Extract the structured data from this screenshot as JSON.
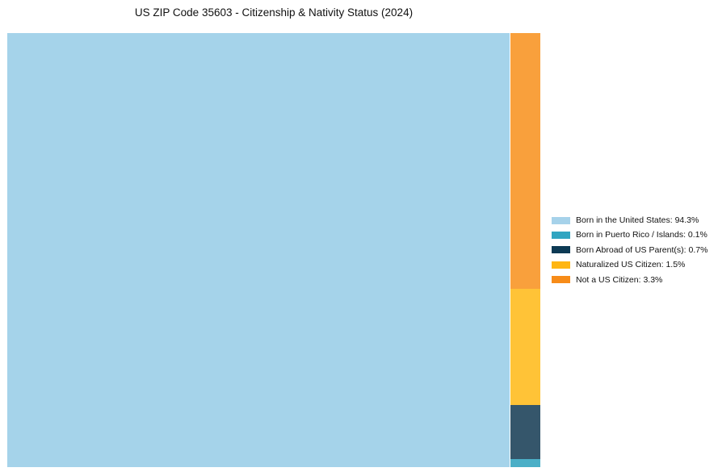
{
  "title": "US ZIP Code 35603 - Citizenship & Nativity Status (2024)",
  "chart_data": {
    "type": "treemap",
    "title": "US ZIP Code 35603 - Citizenship & Nativity Status (2024)",
    "unit": "%",
    "items": [
      {
        "label": "Born in the United States",
        "value": 94.3,
        "legend_label": "Born in the United States: 94.3%",
        "legend_color": "#a6d2ea",
        "rect_color": "#a5d3ea"
      },
      {
        "label": "Born in Puerto Rico / Islands",
        "value": 0.1,
        "legend_label": "Born in Puerto Rico / Islands: 0.1%",
        "legend_color": "#31a5c1",
        "rect_color": "#4bafc7"
      },
      {
        "label": "Born Abroad of US Parent(s)",
        "value": 0.7,
        "legend_label": "Born Abroad of US Parent(s): 0.7%",
        "legend_color": "#0d3a54",
        "rect_color": "#35566b"
      },
      {
        "label": "Naturalized US Citizen",
        "value": 1.5,
        "legend_label": "Naturalized US Citizen: 1.5%",
        "legend_color": "#ffb612",
        "rect_color": "#ffc337"
      },
      {
        "label": "Not a US Citizen",
        "value": 3.3,
        "legend_label": "Not a US Citizen: 3.3%",
        "legend_color": "#f78c19",
        "rect_color": "#f9a03c"
      }
    ],
    "layout_hints": {
      "largest_block": "left, full height",
      "remainder": "right column, stacked top-to-bottom in descending value order",
      "legend_position": "outside right, vertically centered",
      "grid": false,
      "background": "#ffffff"
    }
  }
}
